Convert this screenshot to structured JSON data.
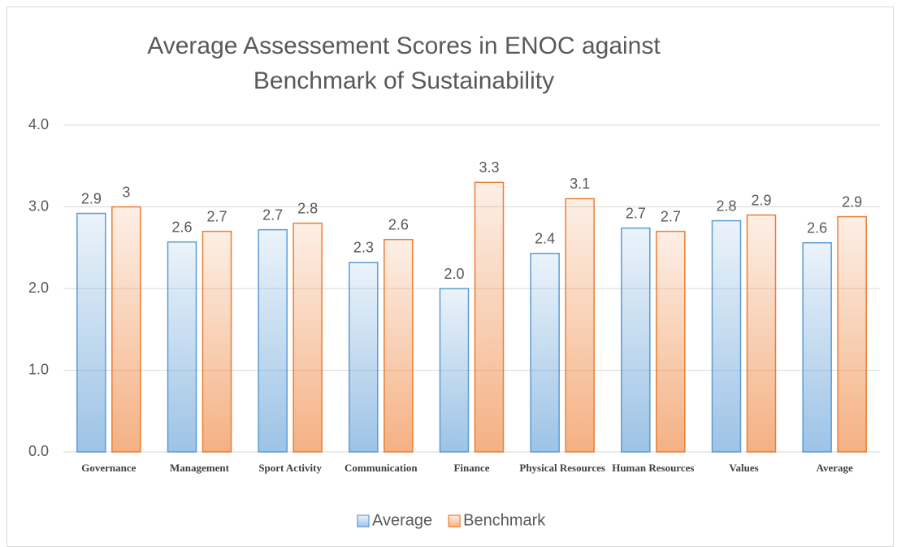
{
  "chart_data": {
    "type": "bar",
    "title": "Average Assessement Scores in ENOC against Benchmark of Sustainability",
    "categories": [
      "Governance",
      "Management",
      "Sport Activity",
      "Communication",
      "Finance",
      "Physical Resources",
      "Human Resources",
      "Values",
      "Average"
    ],
    "series": [
      {
        "name": "Average",
        "color": "#5b9bd5",
        "values": [
          2.92,
          2.57,
          2.72,
          2.32,
          2.0,
          2.43,
          2.74,
          2.83,
          2.56
        ],
        "value_labels": [
          "2.9",
          "2.6",
          "2.7",
          "2.3",
          "2.0",
          "2.4",
          "2.7",
          "2.8",
          "2.6"
        ]
      },
      {
        "name": "Benchmark",
        "color": "#ed7d31",
        "values": [
          3,
          2.7,
          2.8,
          2.6,
          3.3,
          3.1,
          2.7,
          2.9,
          2.88
        ],
        "value_labels": [
          "3",
          "2.7",
          "2.8",
          "2.6",
          "3.3",
          "3.1",
          "2.7",
          "2.9",
          "2.9"
        ]
      }
    ],
    "ylim": [
      0,
      4
    ],
    "yticks": [
      {
        "value": 0,
        "label": "0.0"
      },
      {
        "value": 1,
        "label": "1.0"
      },
      {
        "value": 2,
        "label": "2.0"
      },
      {
        "value": 3,
        "label": "3.0"
      },
      {
        "value": 4,
        "label": "4.0"
      }
    ],
    "grid": true,
    "legend": "bottom"
  }
}
